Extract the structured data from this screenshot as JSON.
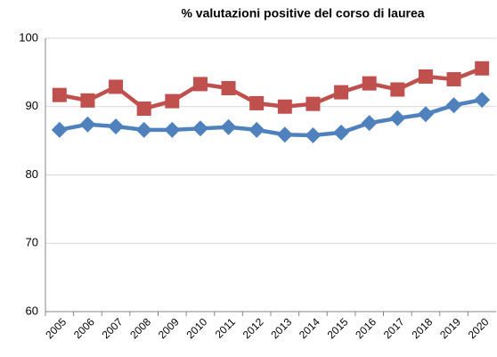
{
  "chart_data": {
    "type": "line",
    "title": "% valutazioni positive del corso di laurea",
    "categories": [
      "2005",
      "2006",
      "2007",
      "2008",
      "2009",
      "2010",
      "2011",
      "2012",
      "2013",
      "2014",
      "2015",
      "2016",
      "2017",
      "2018",
      "2019",
      "2020"
    ],
    "series": [
      {
        "color": "#c0504d",
        "marker": "square",
        "values": [
          91.7,
          90.9,
          92.9,
          89.7,
          90.8,
          93.3,
          92.7,
          90.5,
          90.0,
          90.4,
          92.1,
          93.4,
          92.5,
          94.4,
          94.0,
          95.6
        ]
      },
      {
        "color": "#4f81bd",
        "marker": "diamond",
        "values": [
          86.6,
          87.4,
          87.1,
          86.6,
          86.6,
          86.8,
          87.0,
          86.6,
          85.9,
          85.8,
          86.2,
          87.6,
          88.3,
          88.9,
          90.2,
          91.0
        ]
      }
    ],
    "ylim": [
      60,
      100
    ],
    "yticks": [
      60,
      70,
      80,
      90,
      100
    ],
    "grid": true
  }
}
